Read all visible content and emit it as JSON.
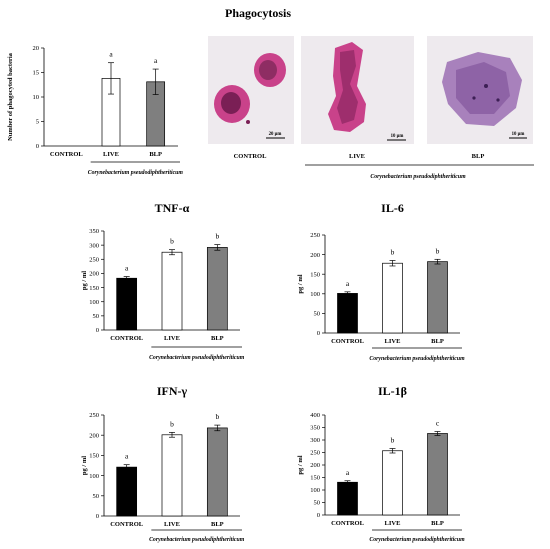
{
  "page_title": "Phagocytosis",
  "species": "Corynebacterium pseudodiphtheriticum",
  "colors": {
    "control": "#000000",
    "live": "#ffffff",
    "blp": "#7f7f7f",
    "stain_cell": "#c9428a",
    "stain_dark": "#7a1f55",
    "stain_blp": "#9b6fb3",
    "micro_background": "#eeeaee"
  },
  "micrographs": [
    {
      "label": "CONTROL",
      "scale": "20 μm",
      "icon": "macrophage-micrograph"
    },
    {
      "label": "LIVE",
      "scale": "10 μm",
      "icon": "macrophage-live-bacteria-micrograph"
    },
    {
      "label": "BLP",
      "scale": "10 μm",
      "icon": "macrophage-blp-micrograph"
    }
  ],
  "chart_data": [
    {
      "id": "phagocytosis",
      "type": "bar",
      "title": "",
      "ylabel": "Number of phagocyted bacteria",
      "xlabel": "",
      "categories": [
        "CONTROL",
        "LIVE",
        "BLP"
      ],
      "values": [
        0,
        13.8,
        13.1
      ],
      "errors": [
        0,
        3.2,
        2.6
      ],
      "letters": [
        "",
        "a",
        "a"
      ],
      "ylim": [
        0,
        20
      ],
      "yticks": [
        0,
        5,
        10,
        15,
        20
      ],
      "grid": false
    },
    {
      "id": "tnf",
      "type": "bar",
      "title": "TNF-α",
      "ylabel": "pg / ml",
      "xlabel": "",
      "categories": [
        "CONTROL",
        "LIVE",
        "BLP"
      ],
      "values": [
        183,
        275,
        292
      ],
      "errors": [
        6,
        9,
        10
      ],
      "letters": [
        "a",
        "b",
        "b"
      ],
      "ylim": [
        0,
        350
      ],
      "yticks": [
        0,
        50,
        100,
        150,
        200,
        250,
        300,
        350
      ],
      "grid": false
    },
    {
      "id": "il6",
      "type": "bar",
      "title": "IL-6",
      "ylabel": "pg / ml",
      "xlabel": "",
      "categories": [
        "CONTROL",
        "LIVE",
        "BLP"
      ],
      "values": [
        101,
        178,
        182
      ],
      "errors": [
        4,
        7,
        6
      ],
      "letters": [
        "a",
        "b",
        "b"
      ],
      "ylim": [
        0,
        250
      ],
      "yticks": [
        0,
        50,
        100,
        150,
        200,
        250
      ],
      "grid": false
    },
    {
      "id": "ifn",
      "type": "bar",
      "title": "IFN-γ",
      "ylabel": "pg / ml",
      "xlabel": "",
      "categories": [
        "CONTROL",
        "LIVE",
        "BLP"
      ],
      "values": [
        121,
        201,
        218
      ],
      "errors": [
        6,
        6,
        7
      ],
      "letters": [
        "a",
        "b",
        "b"
      ],
      "ylim": [
        0,
        250
      ],
      "yticks": [
        0,
        50,
        100,
        150,
        200,
        250
      ],
      "grid": false
    },
    {
      "id": "il1b",
      "type": "bar",
      "title": "IL-1β",
      "ylabel": "pg / ml",
      "xlabel": "",
      "categories": [
        "CONTROL",
        "LIVE",
        "BLP"
      ],
      "values": [
        131,
        257,
        326
      ],
      "errors": [
        6,
        9,
        8
      ],
      "letters": [
        "a",
        "b",
        "c"
      ],
      "ylim": [
        0,
        400
      ],
      "yticks": [
        0,
        50,
        100,
        150,
        200,
        250,
        300,
        350,
        400
      ],
      "grid": false
    }
  ]
}
